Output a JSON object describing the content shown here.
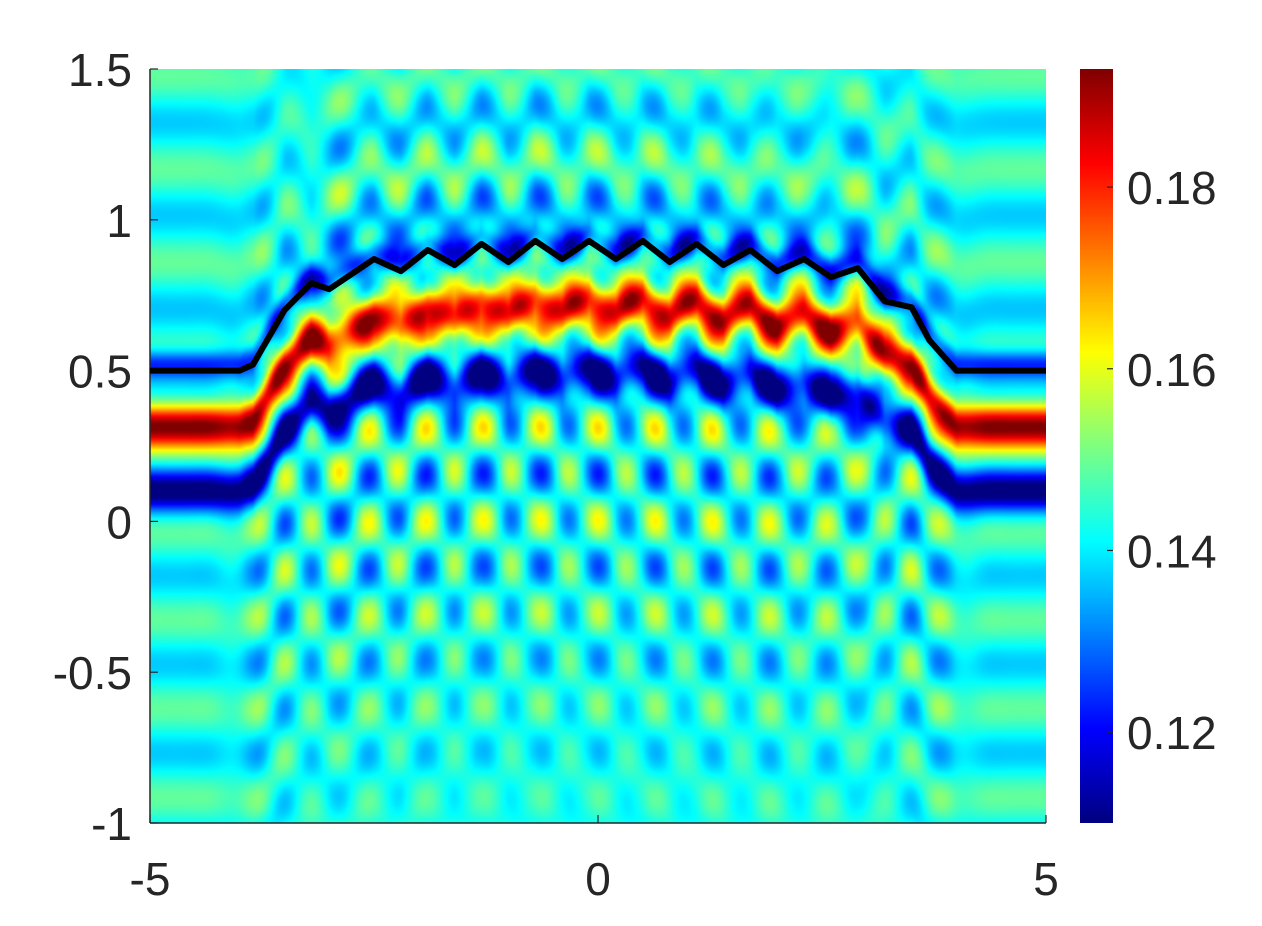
{
  "chart_data": {
    "type": "heatmap",
    "title": "",
    "xlabel": "",
    "ylabel": "",
    "xlim": [
      -5,
      5
    ],
    "ylim": [
      -1,
      1.5
    ],
    "x_ticks": [
      "-5",
      "0",
      "5"
    ],
    "y_ticks": [
      "-1",
      "-0.5",
      "0",
      "0.5",
      "1",
      "1.5"
    ],
    "colormap": "jet",
    "color_range": [
      0.11,
      0.193
    ],
    "colorbar_ticks": [
      "0.12",
      "0.14",
      "0.16",
      "0.18"
    ],
    "colorbar_tick_values": [
      0.12,
      0.14,
      0.16,
      0.18
    ],
    "grid": false,
    "field_description": {
      "background_value": 0.143,
      "ridge_value_max": 0.192,
      "trough_value_min": 0.112,
      "ridge_offset_below_curve": 0.18,
      "oscillation_period_x": 0.64
    },
    "curve": {
      "color": "#000000",
      "x": [
        -5,
        -4.0,
        -3.85,
        -3.5,
        -3.2,
        -3.0,
        -2.8,
        -2.5,
        -2.2,
        -1.9,
        -1.6,
        -1.3,
        -1.0,
        -0.7,
        -0.4,
        -0.1,
        0.2,
        0.5,
        0.8,
        1.1,
        1.4,
        1.7,
        2.0,
        2.3,
        2.6,
        2.9,
        3.2,
        3.5,
        3.7,
        4.0,
        4.15,
        5
      ],
      "y": [
        0.5,
        0.5,
        0.52,
        0.7,
        0.79,
        0.77,
        0.81,
        0.87,
        0.83,
        0.9,
        0.85,
        0.92,
        0.86,
        0.93,
        0.87,
        0.93,
        0.87,
        0.93,
        0.86,
        0.92,
        0.85,
        0.9,
        0.83,
        0.87,
        0.81,
        0.84,
        0.73,
        0.71,
        0.6,
        0.5,
        0.5,
        0.5
      ]
    }
  }
}
